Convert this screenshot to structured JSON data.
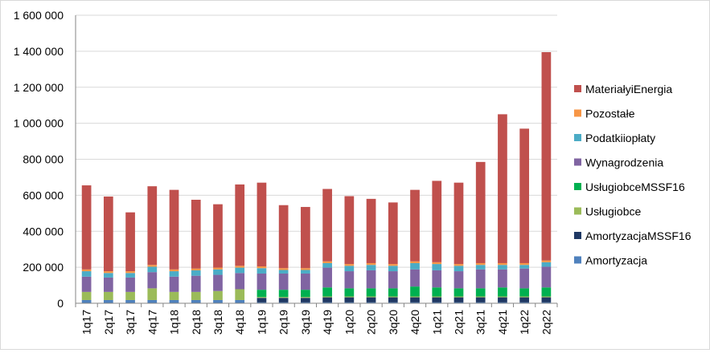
{
  "chart_data": {
    "type": "bar",
    "stacked": true,
    "title": "",
    "xlabel": "",
    "ylabel": "",
    "ylim": [
      0,
      1600000
    ],
    "yticks": [
      0,
      200000,
      400000,
      600000,
      800000,
      1000000,
      1200000,
      1400000,
      1600000
    ],
    "ytick_labels": [
      "0",
      "200 000",
      "400 000",
      "600 000",
      "800 000",
      "1 000 000",
      "1 200 000",
      "1 400 000",
      "1 600 000"
    ],
    "grid": "horizontal",
    "legend_position": "right",
    "categories": [
      "1q17",
      "2q17",
      "3q17",
      "4q17",
      "1q18",
      "2q18",
      "3q18",
      "4q18",
      "1q19",
      "2q19",
      "3q19",
      "4q19",
      "1q20",
      "2q20",
      "3q20",
      "4q20",
      "1q21",
      "2q21",
      "3q21",
      "4q21",
      "1q22",
      "2q22"
    ],
    "series": [
      {
        "name": "Amortyzacja",
        "color": "#4f81bd",
        "values": [
          18000,
          18000,
          18000,
          18000,
          18000,
          18000,
          18000,
          18000,
          5000,
          5000,
          5000,
          5000,
          5000,
          5000,
          5000,
          5000,
          5000,
          5000,
          5000,
          5000,
          5000,
          5000
        ]
      },
      {
        "name": "AmortyzacjaMSSF16",
        "color": "#1f3864",
        "values": [
          0,
          0,
          0,
          0,
          0,
          0,
          0,
          0,
          25000,
          25000,
          25000,
          28000,
          28000,
          28000,
          28000,
          28000,
          28000,
          28000,
          28000,
          28000,
          28000,
          28000
        ]
      },
      {
        "name": "Usługiobce",
        "color": "#9bbb59",
        "values": [
          45000,
          45000,
          45000,
          65000,
          45000,
          45000,
          50000,
          60000,
          5000,
          5000,
          5000,
          5000,
          5000,
          5000,
          5000,
          5000,
          5000,
          5000,
          5000,
          5000,
          5000,
          5000
        ]
      },
      {
        "name": "UsługiobceMSSF16",
        "color": "#00b050",
        "values": [
          0,
          0,
          0,
          0,
          0,
          0,
          0,
          0,
          40000,
          40000,
          40000,
          50000,
          45000,
          45000,
          45000,
          55000,
          50000,
          45000,
          45000,
          50000,
          45000,
          50000
        ]
      },
      {
        "name": "Wynagrodzenia",
        "color": "#8064a2",
        "values": [
          85000,
          80000,
          80000,
          90000,
          85000,
          90000,
          90000,
          90000,
          90000,
          90000,
          90000,
          110000,
          95000,
          100000,
          95000,
          95000,
          95000,
          95000,
          105000,
          100000,
          110000,
          115000
        ]
      },
      {
        "name": "Podatkiiopłaty",
        "color": "#4bacc6",
        "values": [
          30000,
          25000,
          25000,
          30000,
          30000,
          30000,
          30000,
          30000,
          30000,
          20000,
          20000,
          25000,
          30000,
          30000,
          30000,
          35000,
          35000,
          30000,
          25000,
          25000,
          20000,
          25000
        ]
      },
      {
        "name": "Pozostałe",
        "color": "#f79646",
        "values": [
          10000,
          10000,
          10000,
          10000,
          10000,
          10000,
          10000,
          10000,
          10000,
          10000,
          10000,
          10000,
          10000,
          10000,
          10000,
          10000,
          10000,
          10000,
          10000,
          10000,
          10000,
          10000
        ]
      },
      {
        "name": "MateriałyiEnergia",
        "color": "#c0504d",
        "values": [
          467000,
          415000,
          327000,
          437000,
          442000,
          382000,
          352000,
          452000,
          465000,
          350000,
          340000,
          402000,
          377000,
          357000,
          342000,
          397000,
          452000,
          452000,
          562000,
          827000,
          747000,
          1157000
        ]
      }
    ]
  }
}
